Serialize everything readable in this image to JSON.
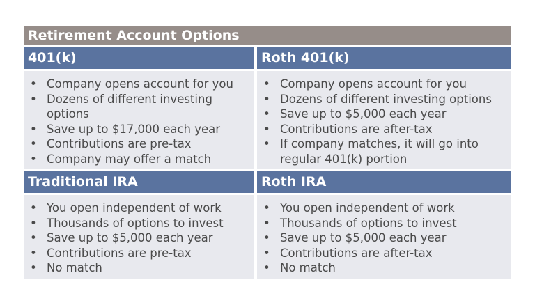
{
  "title": "Retirement Account Options",
  "cells": [
    {
      "header": "401(k)",
      "items": [
        "Company opens account for you",
        "Dozens of different investing options",
        "Save up to $17,000 each year",
        "Contributions are pre-tax",
        "Company may offer a match"
      ]
    },
    {
      "header": "Roth 401(k)",
      "items": [
        "Company opens account for you",
        "Dozens of different investing options",
        "Save up to $5,000 each year",
        "Contributions are after-tax",
        "If company matches, it will go into regular 401(k) portion"
      ]
    },
    {
      "header": "Traditional IRA",
      "items": [
        "You open independent of work",
        "Thousands of options to invest",
        "Save up to $5,000 each year",
        "Contributions are pre-tax",
        "No match"
      ]
    },
    {
      "header": "Roth IRA",
      "items": [
        "You open independent of work",
        "Thousands of options to invest",
        "Save up to $5,000 each year",
        "Contributions are after-tax",
        "No match"
      ]
    }
  ],
  "colors": {
    "title_bg": "#968d89",
    "header_bg": "#5a739f",
    "body_bg": "#e8e9ee",
    "text": "#4a4a4a"
  }
}
